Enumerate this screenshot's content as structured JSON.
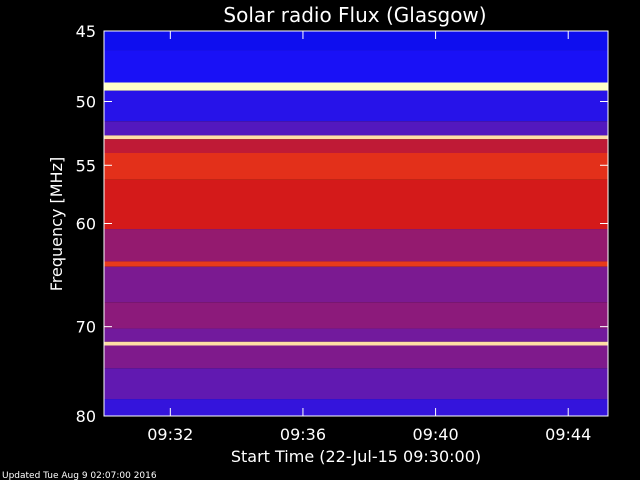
{
  "chart_data": {
    "type": "heatmap",
    "title": "Solar radio Flux (Glasgow)",
    "xlabel": "Start Time (22-Jul-15 09:30:00)",
    "ylabel": "Frequency [MHz]",
    "x_unit": "minutes after 09:30",
    "xlim": [
      0,
      15.2
    ],
    "ylim": [
      45,
      80
    ],
    "y_scale": "log",
    "x_ticks": [
      {
        "value": 2,
        "label": "09:32"
      },
      {
        "value": 6,
        "label": "09:36"
      },
      {
        "value": 10,
        "label": "09:40"
      },
      {
        "value": 14,
        "label": "09:44"
      }
    ],
    "y_ticks": [
      {
        "value": 45,
        "label": "45"
      },
      {
        "value": 50,
        "label": "50"
      },
      {
        "value": 55,
        "label": "55"
      },
      {
        "value": 60,
        "label": "60"
      },
      {
        "value": 70,
        "label": "70"
      },
      {
        "value": 80,
        "label": "80"
      }
    ],
    "intensity_bands": [
      {
        "from": 45.0,
        "to": 46.3,
        "level": 0.18
      },
      {
        "from": 46.3,
        "to": 48.6,
        "level": 0.22
      },
      {
        "from": 48.6,
        "to": 49.2,
        "level": 1.0
      },
      {
        "from": 49.2,
        "to": 51.5,
        "level": 0.25
      },
      {
        "from": 51.5,
        "to": 52.6,
        "level": 0.35
      },
      {
        "from": 52.6,
        "to": 52.9,
        "level": 0.97
      },
      {
        "from": 52.9,
        "to": 54.0,
        "level": 0.6
      },
      {
        "from": 54.0,
        "to": 56.2,
        "level": 0.72
      },
      {
        "from": 56.2,
        "to": 60.5,
        "level": 0.65
      },
      {
        "from": 60.5,
        "to": 63.5,
        "level": 0.5
      },
      {
        "from": 63.5,
        "to": 64.0,
        "level": 0.75
      },
      {
        "from": 64.0,
        "to": 67.5,
        "level": 0.44
      },
      {
        "from": 67.5,
        "to": 70.2,
        "level": 0.48
      },
      {
        "from": 70.2,
        "to": 71.6,
        "level": 0.42
      },
      {
        "from": 71.6,
        "to": 72.0,
        "level": 0.97
      },
      {
        "from": 72.0,
        "to": 74.5,
        "level": 0.45
      },
      {
        "from": 74.5,
        "to": 78.0,
        "level": 0.38
      },
      {
        "from": 78.0,
        "to": 80.0,
        "level": 0.28
      }
    ],
    "colors": {
      "background": "#000000",
      "low": "#000060",
      "mid_low": "#1010ff",
      "mid": "#6a1aa8",
      "mid_high": "#d41a1a",
      "high": "#ff5a1a",
      "peak": "#ffffc8",
      "frame": "#ffffff"
    }
  },
  "footer": {
    "updated": "Updated Tue Aug  9 02:07:00 2016"
  }
}
